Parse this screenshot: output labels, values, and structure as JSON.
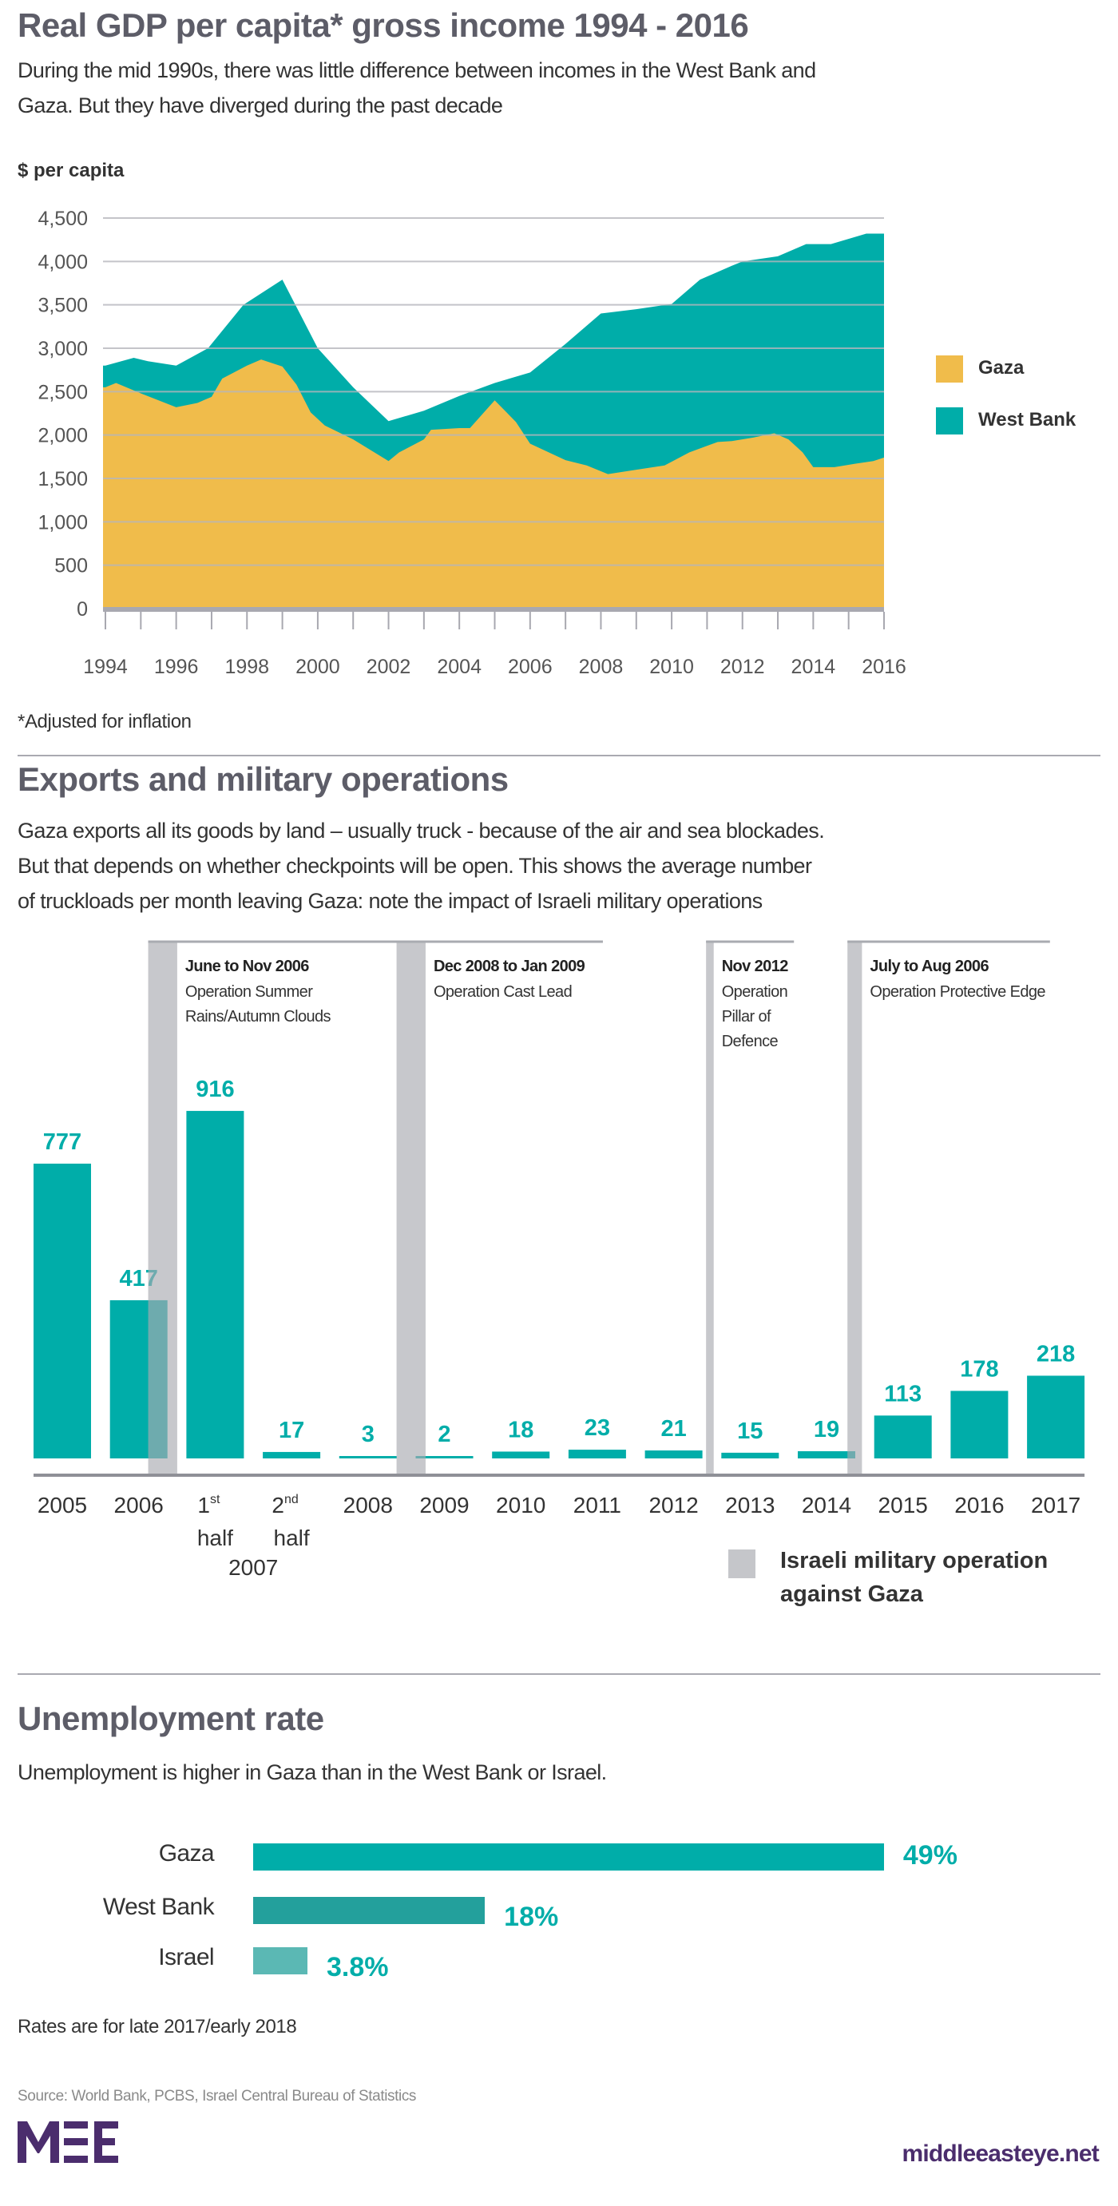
{
  "colors": {
    "teal": "#00ada9",
    "gaza": "#f0bc4b",
    "band": "#c5c6ca",
    "wb_bar": "#23a09c",
    "israel_bar": "#5bb8b4",
    "purple": "#4b2d6d"
  },
  "section1": {
    "title": "Real GDP per capita* gross income 1994 - 2016",
    "subtitle_lines": [
      "During the mid 1990s, there was little difference between incomes in the West Bank and",
      "Gaza. But they have diverged during the past decade"
    ],
    "footnote": "*Adjusted for inflation"
  },
  "section2": {
    "title": "Exports and military operations",
    "subtitle_lines": [
      "Gaza exports all its goods by land – usually truck - because of the air and sea blockades.",
      "But that depends on whether checkpoints will be open. This shows the average number",
      "of truckloads per month leaving Gaza: note the impact of Israeli military operations"
    ],
    "legend_lines": [
      "Israeli military operation",
      "against Gaza"
    ]
  },
  "section3": {
    "title": "Unemployment rate",
    "subtitle": "Unemployment is higher in Gaza than in the West Bank or Israel.",
    "note": "Rates are for late 2017/early 2018"
  },
  "footer": {
    "source": "Source: World Bank, PCBS, Israel Central Bureau of Statistics",
    "logo_text": "MEE",
    "site": "middleeasteye.net"
  },
  "chart_data": [
    {
      "type": "area",
      "title": "Real GDP per capita* gross income 1994 - 2016",
      "ylabel": "$ per capita",
      "xlabel": "",
      "ylim": [
        0,
        4500
      ],
      "xlim": [
        1994,
        2016
      ],
      "yticks": [
        0,
        500,
        1000,
        1500,
        2000,
        2500,
        3000,
        3500,
        4000,
        4500
      ],
      "ytick_labels": [
        "0",
        "500",
        "1,000",
        "1,500",
        "2,000",
        "2,500",
        "3,000",
        "3,500",
        "4,000",
        "4,500"
      ],
      "xtick_labels": [
        "1994",
        "1996",
        "1998",
        "2000",
        "2002",
        "2004",
        "2006",
        "2008",
        "2010",
        "2012",
        "2014",
        "2016"
      ],
      "grid": true,
      "legend_position": "right",
      "series": [
        {
          "name": "West Bank",
          "color": "#00ada9",
          "points": [
            [
              1994,
              2800
            ],
            [
              1994.8,
              2890
            ],
            [
              1995.2,
              2850
            ],
            [
              1996,
              2800
            ],
            [
              1996.9,
              3000
            ],
            [
              1997.9,
              3500
            ],
            [
              1999,
              3790
            ],
            [
              2000,
              3000
            ],
            [
              2001,
              2550
            ],
            [
              2002,
              2160
            ],
            [
              2003,
              2280
            ],
            [
              2004,
              2450
            ],
            [
              2005,
              2600
            ],
            [
              2006,
              2720
            ],
            [
              2007,
              3050
            ],
            [
              2008,
              3400
            ],
            [
              2009,
              3450
            ],
            [
              2010,
              3510
            ],
            [
              2010.8,
              3790
            ],
            [
              2011.7,
              3950
            ],
            [
              2012,
              4000
            ],
            [
              2013,
              4060
            ],
            [
              2013.8,
              4200
            ],
            [
              2014.5,
              4200
            ],
            [
              2015.5,
              4320
            ],
            [
              2016,
              4320
            ]
          ]
        },
        {
          "name": "Gaza",
          "color": "#f0bc4b",
          "points": [
            [
              1994,
              2550
            ],
            [
              1994.3,
              2600
            ],
            [
              1995,
              2480
            ],
            [
              1996,
              2320
            ],
            [
              1996.6,
              2370
            ],
            [
              1997,
              2440
            ],
            [
              1997.3,
              2650
            ],
            [
              1998,
              2800
            ],
            [
              1998.4,
              2870
            ],
            [
              1999,
              2790
            ],
            [
              1999.4,
              2580
            ],
            [
              1999.8,
              2260
            ],
            [
              2000.2,
              2110
            ],
            [
              2001,
              1950
            ],
            [
              2002,
              1700
            ],
            [
              2002.3,
              1800
            ],
            [
              2003,
              1950
            ],
            [
              2003.2,
              2060
            ],
            [
              2004,
              2080
            ],
            [
              2004.3,
              2080
            ],
            [
              2005,
              2400
            ],
            [
              2005.6,
              2150
            ],
            [
              2006,
              1900
            ],
            [
              2007,
              1710
            ],
            [
              2007.6,
              1650
            ],
            [
              2008.2,
              1550
            ],
            [
              2009,
              1600
            ],
            [
              2009.8,
              1650
            ],
            [
              2010.5,
              1800
            ],
            [
              2011.3,
              1920
            ],
            [
              2011.7,
              1930
            ],
            [
              2012.3,
              1970
            ],
            [
              2012.9,
              2020
            ],
            [
              2013.3,
              1950
            ],
            [
              2013.7,
              1800
            ],
            [
              2014,
              1630
            ],
            [
              2014.6,
              1630
            ],
            [
              2015.2,
              1670
            ],
            [
              2015.7,
              1700
            ],
            [
              2016,
              1740
            ]
          ]
        }
      ]
    },
    {
      "type": "bar",
      "title": "Exports and military operations",
      "categories": [
        [
          "2005"
        ],
        [
          "2006"
        ],
        [
          "1st",
          "half"
        ],
        [
          "2nd",
          "half"
        ],
        [
          "2008"
        ],
        [
          "2009"
        ],
        [
          "2010"
        ],
        [
          "2011"
        ],
        [
          "2012"
        ],
        [
          "2013"
        ],
        [
          "2014"
        ],
        [
          "2015"
        ],
        [
          "2016"
        ],
        [
          "2017"
        ]
      ],
      "group_label": {
        "text": "2007",
        "spans": [
          2,
          3
        ]
      },
      "values": [
        777,
        417,
        916,
        17,
        3,
        2,
        18,
        23,
        21,
        15,
        19,
        113,
        178,
        218
      ],
      "value_labels": [
        "777",
        "417",
        "916",
        "17",
        "3",
        "2",
        "18",
        "23",
        "21",
        "15",
        "19",
        "113",
        "178",
        "218"
      ],
      "ylim": [
        0,
        950
      ],
      "annotations": [
        {
          "at": 1.5,
          "width_frac": 0.38,
          "text_end": 4.9,
          "title": "June to Nov 2006",
          "lines": [
            "Operation Summer",
            "Rains/Autumn Clouds"
          ]
        },
        {
          "at": 4.75,
          "width_frac": 0.38,
          "text_end": 7.45,
          "title": "Dec 2008 to Jan 2009",
          "lines": [
            "Operation Cast Lead"
          ]
        },
        {
          "at": 8.8,
          "width_frac": 0.1,
          "text_end": 9.95,
          "title": "Nov 2012",
          "lines": [
            "Operation",
            "Pillar of",
            "Defence"
          ]
        },
        {
          "at": 10.65,
          "width_frac": 0.19,
          "text_end": 13.3,
          "title": "July to Aug 2006",
          "lines": [
            "Operation Protective Edge"
          ]
        }
      ]
    },
    {
      "type": "bar",
      "orientation": "horizontal",
      "title": "Unemployment rate",
      "categories": [
        "Gaza",
        "West Bank",
        "Israel"
      ],
      "values": [
        49,
        18,
        3.8
      ],
      "value_labels": [
        "49%",
        "18%",
        "3.8%"
      ]
    }
  ]
}
